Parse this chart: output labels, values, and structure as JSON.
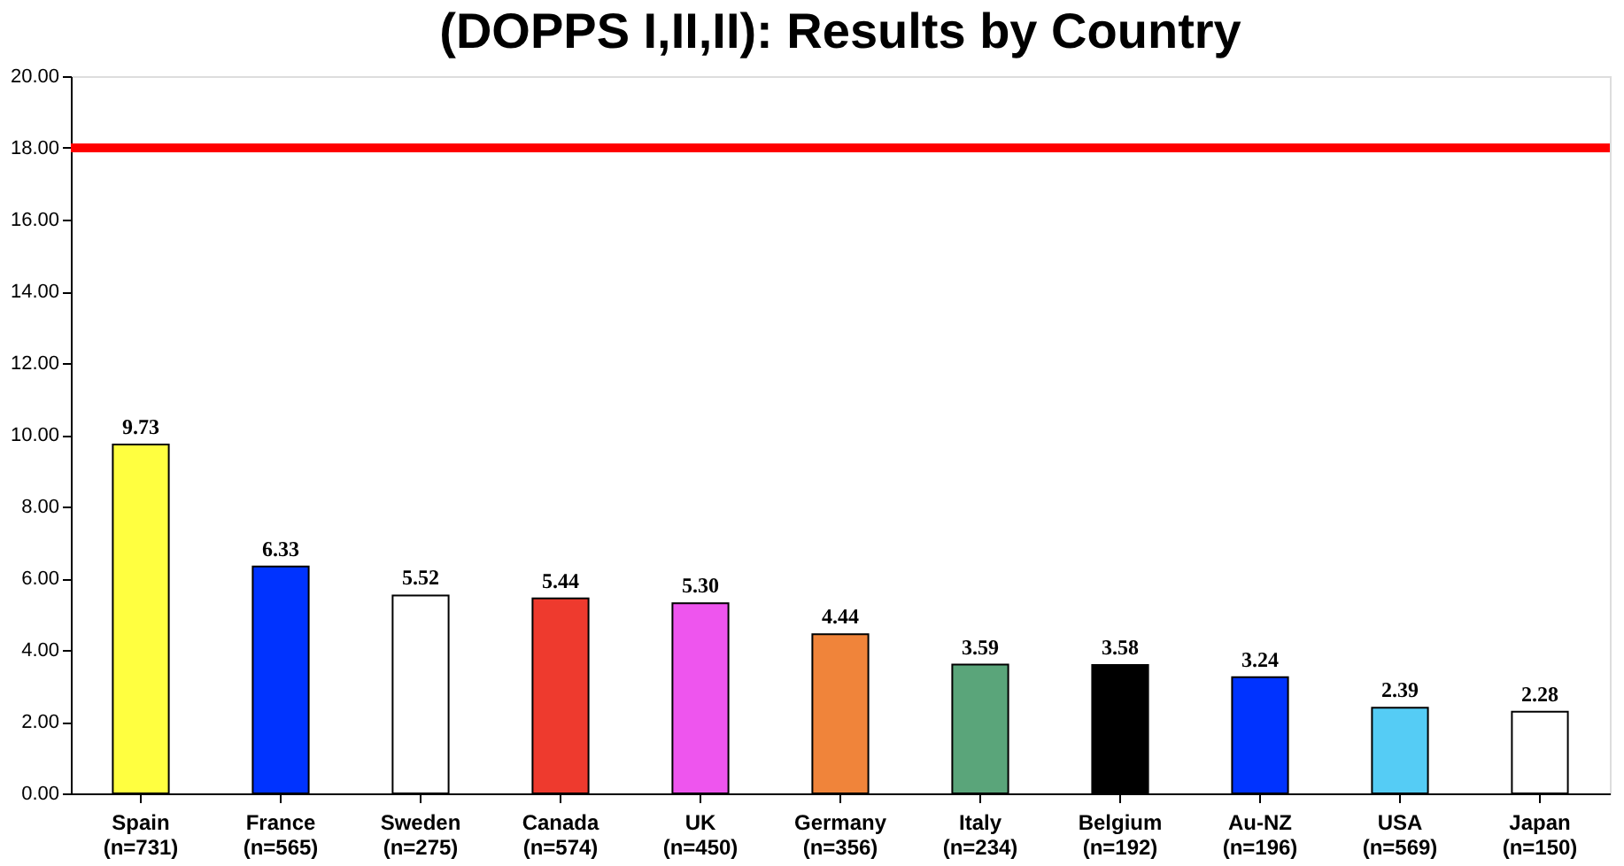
{
  "chart_data": {
    "type": "bar",
    "title": "(DOPPS I,II,II): Results by Country",
    "categories": [
      "Spain\n(n=731)",
      "France\n(n=565)",
      "Sweden\n(n=275)",
      "Canada\n(n=574)",
      "UK\n(n=450)",
      "Germany\n(n=356)",
      "Italy\n(n=234)",
      "Belgium\n(n=192)",
      "Au-NZ\n(n=196)",
      "USA\n(n=569)",
      "Japan\n(n=150)"
    ],
    "values": [
      9.73,
      6.33,
      5.52,
      5.44,
      5.3,
      4.44,
      3.59,
      3.58,
      3.24,
      2.39,
      2.28
    ],
    "colors": [
      "#ffff40",
      "#0033ff",
      "#ffffff",
      "#ee3a2e",
      "#ee55ee",
      "#f0843a",
      "#5aa57a",
      "#000000",
      "#0033ff",
      "#55ccf5",
      "#ffffff"
    ],
    "value_labels": [
      "9.73",
      "6.33",
      "5.52",
      "5.44",
      "5.30",
      "4.44",
      "3.59",
      "3.58",
      "3.24",
      "2.39",
      "2.28"
    ],
    "ylim": [
      0,
      20
    ],
    "yticks": [
      {
        "value": 0,
        "label": "0.00"
      },
      {
        "value": 2,
        "label": "2.00"
      },
      {
        "value": 4,
        "label": "4.00"
      },
      {
        "value": 6,
        "label": "6.00"
      },
      {
        "value": 8,
        "label": "8.00"
      },
      {
        "value": 10,
        "label": "10.00"
      },
      {
        "value": 12,
        "label": "12.00"
      },
      {
        "value": 14,
        "label": "14.00"
      },
      {
        "value": 16,
        "label": "16.00"
      },
      {
        "value": 18,
        "label": "18.00"
      },
      {
        "value": 20,
        "label": "20.00"
      }
    ],
    "ref_lines": [
      {
        "axis": "y",
        "value": 18,
        "label": null,
        "color": "#ff0000"
      }
    ],
    "grid": false
  }
}
